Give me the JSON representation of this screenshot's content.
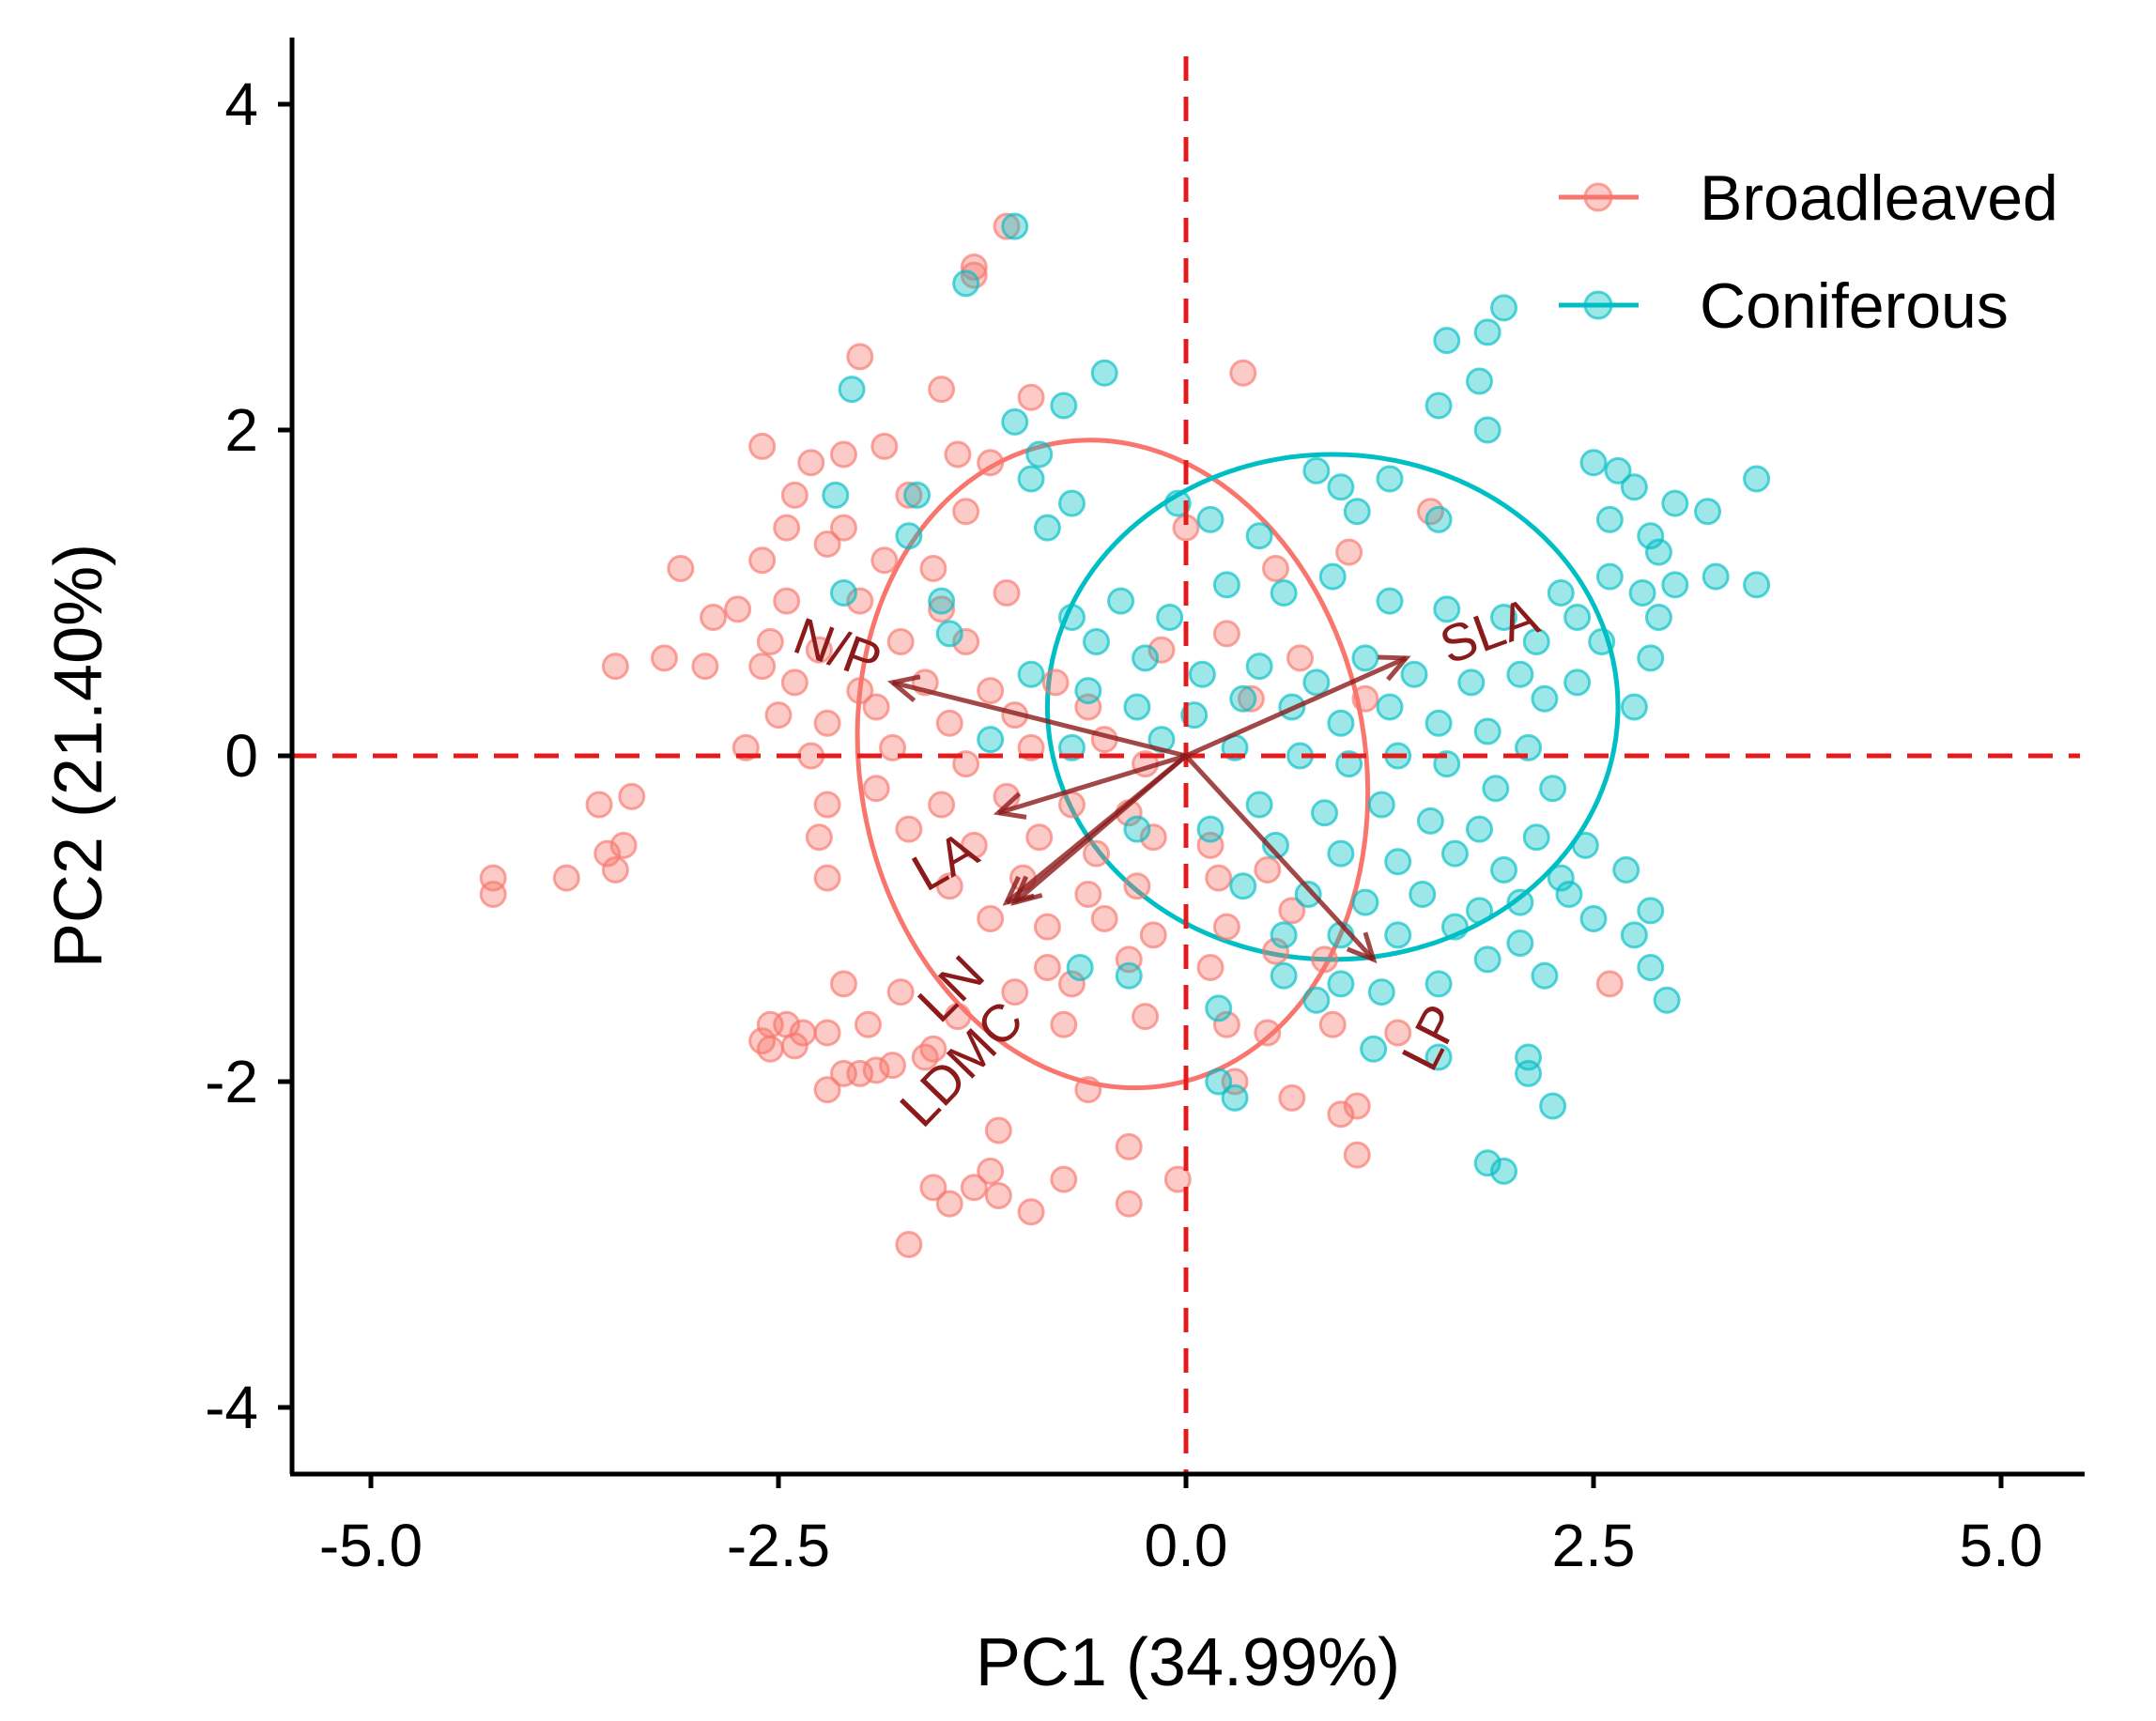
{
  "chart_data": {
    "type": "scatter",
    "title": "",
    "xlabel": "PC1 (34.99%)",
    "ylabel": "PC2 (21.40%)",
    "xlim": [
      -5.5,
      5.5
    ],
    "ylim": [
      -4.4,
      4.4
    ],
    "xticks": [
      -5.0,
      -2.5,
      0.0,
      2.5,
      5.0
    ],
    "xtick_labels": [
      "-5.0",
      "-2.5",
      "0.0",
      "2.5",
      "5.0"
    ],
    "yticks": [
      -4,
      -2,
      0,
      2,
      4
    ],
    "ytick_labels": [
      "-4",
      "-2",
      "0",
      "2",
      "4"
    ],
    "grid": false,
    "legend_position": "top-right",
    "reference_lines": {
      "x": 0,
      "y": 0,
      "color": "#e41a1c",
      "style": "dashed"
    },
    "series": [
      {
        "name": "Broadleaved",
        "color": "#F8766D",
        "ellipse": {
          "cx": -0.45,
          "cy": -0.05,
          "rx": 1.55,
          "ry": 2.0,
          "angle_deg": -10
        },
        "points": [
          [
            -1.3,
            3.0
          ],
          [
            -1.3,
            2.95
          ],
          [
            -1.1,
            3.25
          ],
          [
            -2.0,
            2.45
          ],
          [
            -1.5,
            2.25
          ],
          [
            -0.95,
            2.2
          ],
          [
            -2.6,
            1.9
          ],
          [
            -2.3,
            1.8
          ],
          [
            -2.1,
            1.85
          ],
          [
            -1.85,
            1.9
          ],
          [
            -1.4,
            1.85
          ],
          [
            -1.2,
            1.8
          ],
          [
            -2.4,
            1.6
          ],
          [
            -1.7,
            1.6
          ],
          [
            -2.45,
            1.4
          ],
          [
            -2.1,
            1.4
          ],
          [
            -1.35,
            1.5
          ],
          [
            -2.6,
            1.2
          ],
          [
            -2.2,
            1.3
          ],
          [
            -1.85,
            1.2
          ],
          [
            -1.55,
            1.15
          ],
          [
            -3.1,
            1.15
          ],
          [
            -2.75,
            0.9
          ],
          [
            -2.45,
            0.95
          ],
          [
            -2.0,
            0.95
          ],
          [
            -1.5,
            0.9
          ],
          [
            -1.1,
            1.0
          ],
          [
            -2.9,
            0.85
          ],
          [
            -2.55,
            0.7
          ],
          [
            -2.25,
            0.65
          ],
          [
            -1.75,
            0.7
          ],
          [
            -1.35,
            0.7
          ],
          [
            -3.2,
            0.6
          ],
          [
            -2.95,
            0.55
          ],
          [
            -2.6,
            0.55
          ],
          [
            -3.5,
            0.55
          ],
          [
            -2.4,
            0.45
          ],
          [
            -2.0,
            0.4
          ],
          [
            -1.6,
            0.45
          ],
          [
            -1.2,
            0.4
          ],
          [
            -0.8,
            0.45
          ],
          [
            -2.5,
            0.25
          ],
          [
            -2.2,
            0.2
          ],
          [
            -1.9,
            0.3
          ],
          [
            -1.45,
            0.2
          ],
          [
            -1.05,
            0.25
          ],
          [
            -0.6,
            0.3
          ],
          [
            -2.7,
            0.05
          ],
          [
            -2.3,
            0.0
          ],
          [
            -1.8,
            0.05
          ],
          [
            -1.35,
            -0.05
          ],
          [
            -0.95,
            0.05
          ],
          [
            -0.5,
            0.1
          ],
          [
            -0.25,
            -0.05
          ],
          [
            -3.6,
            -0.3
          ],
          [
            -3.4,
            -0.25
          ],
          [
            -2.2,
            -0.3
          ],
          [
            -1.9,
            -0.2
          ],
          [
            -1.5,
            -0.3
          ],
          [
            -1.1,
            -0.25
          ],
          [
            -0.7,
            -0.3
          ],
          [
            -0.35,
            -0.35
          ],
          [
            -3.55,
            -0.6
          ],
          [
            -3.45,
            -0.55
          ],
          [
            -3.8,
            -0.75
          ],
          [
            -3.5,
            -0.7
          ],
          [
            -4.25,
            -0.75
          ],
          [
            -4.25,
            -0.85
          ],
          [
            -2.25,
            -0.5
          ],
          [
            -1.7,
            -0.45
          ],
          [
            -1.3,
            -0.55
          ],
          [
            -0.9,
            -0.5
          ],
          [
            -0.55,
            -0.6
          ],
          [
            -0.2,
            -0.5
          ],
          [
            0.15,
            -0.55
          ],
          [
            -2.2,
            -0.75
          ],
          [
            -1.45,
            -0.8
          ],
          [
            -1.0,
            -0.75
          ],
          [
            -0.6,
            -0.85
          ],
          [
            -0.3,
            -0.8
          ],
          [
            0.2,
            -0.75
          ],
          [
            0.5,
            -0.7
          ],
          [
            -1.2,
            -1.0
          ],
          [
            -0.85,
            -1.05
          ],
          [
            -0.5,
            -1.0
          ],
          [
            -0.2,
            -1.1
          ],
          [
            0.25,
            -1.05
          ],
          [
            0.65,
            -0.95
          ],
          [
            -0.85,
            -1.3
          ],
          [
            -0.35,
            -1.25
          ],
          [
            0.15,
            -1.3
          ],
          [
            0.55,
            -1.2
          ],
          [
            0.85,
            -1.25
          ],
          [
            -2.1,
            -1.4
          ],
          [
            -1.75,
            -1.45
          ],
          [
            -1.05,
            -1.45
          ],
          [
            -0.7,
            -1.4
          ],
          [
            -2.55,
            -1.65
          ],
          [
            -2.45,
            -1.65
          ],
          [
            -2.35,
            -1.7
          ],
          [
            -2.2,
            -1.7
          ],
          [
            -1.95,
            -1.65
          ],
          [
            -1.4,
            -1.6
          ],
          [
            -0.75,
            -1.65
          ],
          [
            -0.25,
            -1.6
          ],
          [
            0.25,
            -1.65
          ],
          [
            0.5,
            -1.7
          ],
          [
            0.9,
            -1.65
          ],
          [
            1.3,
            -1.7
          ],
          [
            -2.6,
            -1.75
          ],
          [
            -2.55,
            -1.8
          ],
          [
            -2.4,
            -1.78
          ],
          [
            -2.1,
            -1.95
          ],
          [
            -2.0,
            -1.95
          ],
          [
            -1.9,
            -1.93
          ],
          [
            -1.8,
            -1.9
          ],
          [
            -1.6,
            -1.85
          ],
          [
            -1.55,
            -1.8
          ],
          [
            -2.2,
            -2.05
          ],
          [
            -0.6,
            -2.05
          ],
          [
            0.3,
            -2.0
          ],
          [
            0.65,
            -2.1
          ],
          [
            0.95,
            -2.2
          ],
          [
            1.05,
            -2.15
          ],
          [
            -1.15,
            -2.3
          ],
          [
            -0.35,
            -2.4
          ],
          [
            1.05,
            -2.45
          ],
          [
            -1.2,
            -2.55
          ],
          [
            -0.75,
            -2.6
          ],
          [
            -0.05,
            -2.6
          ],
          [
            -1.55,
            -2.65
          ],
          [
            -1.3,
            -2.65
          ],
          [
            -1.15,
            -2.7
          ],
          [
            -0.35,
            -2.75
          ],
          [
            -1.45,
            -2.75
          ],
          [
            -0.95,
            -2.8
          ],
          [
            -1.7,
            -3.0
          ],
          [
            2.6,
            -1.4
          ],
          [
            0.35,
            2.35
          ],
          [
            0.0,
            1.4
          ],
          [
            0.55,
            1.15
          ],
          [
            1.0,
            1.25
          ],
          [
            1.5,
            1.5
          ],
          [
            0.25,
            0.75
          ],
          [
            0.7,
            0.6
          ],
          [
            1.1,
            0.35
          ],
          [
            -0.15,
            0.65
          ],
          [
            0.4,
            0.35
          ]
        ]
      },
      {
        "name": "Coniferous",
        "color": "#00BFC4",
        "ellipse": {
          "cx": 0.9,
          "cy": 0.3,
          "rx": 1.75,
          "ry": 1.55,
          "angle_deg": 0
        },
        "points": [
          [
            -1.05,
            3.25
          ],
          [
            -1.35,
            2.9
          ],
          [
            -2.05,
            2.25
          ],
          [
            -1.05,
            2.05
          ],
          [
            -0.5,
            2.35
          ],
          [
            -0.75,
            2.15
          ],
          [
            -0.9,
            1.85
          ],
          [
            -1.65,
            1.6
          ],
          [
            -2.15,
            1.6
          ],
          [
            -0.95,
            1.7
          ],
          [
            -0.7,
            1.55
          ],
          [
            -0.05,
            1.55
          ],
          [
            -1.7,
            1.35
          ],
          [
            -0.85,
            1.4
          ],
          [
            0.15,
            1.45
          ],
          [
            0.45,
            1.35
          ],
          [
            1.05,
            1.5
          ],
          [
            1.25,
            1.7
          ],
          [
            1.55,
            1.45
          ],
          [
            1.6,
            2.55
          ],
          [
            1.85,
            2.6
          ],
          [
            1.95,
            2.75
          ],
          [
            1.8,
            2.3
          ],
          [
            1.55,
            2.15
          ],
          [
            1.85,
            2.0
          ],
          [
            0.8,
            1.75
          ],
          [
            0.95,
            1.65
          ],
          [
            2.5,
            1.8
          ],
          [
            2.65,
            1.75
          ],
          [
            2.75,
            1.65
          ],
          [
            3.0,
            1.55
          ],
          [
            3.2,
            1.5
          ],
          [
            3.5,
            1.7
          ],
          [
            2.6,
            1.45
          ],
          [
            2.85,
            1.35
          ],
          [
            2.9,
            1.25
          ],
          [
            2.6,
            1.1
          ],
          [
            2.8,
            1.0
          ],
          [
            3.0,
            1.05
          ],
          [
            3.25,
            1.1
          ],
          [
            3.5,
            1.05
          ],
          [
            2.3,
            1.0
          ],
          [
            2.4,
            0.85
          ],
          [
            2.9,
            0.85
          ],
          [
            2.55,
            0.7
          ],
          [
            2.85,
            0.6
          ],
          [
            2.4,
            0.45
          ],
          [
            2.75,
            0.3
          ],
          [
            2.2,
            0.35
          ],
          [
            -2.1,
            1.0
          ],
          [
            -1.5,
            0.95
          ],
          [
            -1.45,
            0.75
          ],
          [
            -0.7,
            0.85
          ],
          [
            -0.4,
            0.95
          ],
          [
            -0.1,
            0.85
          ],
          [
            0.25,
            1.05
          ],
          [
            0.6,
            1.0
          ],
          [
            0.9,
            1.1
          ],
          [
            1.25,
            0.95
          ],
          [
            1.6,
            0.9
          ],
          [
            1.95,
            0.85
          ],
          [
            2.15,
            0.7
          ],
          [
            -0.55,
            0.7
          ],
          [
            -0.25,
            0.6
          ],
          [
            0.1,
            0.5
          ],
          [
            0.45,
            0.55
          ],
          [
            0.8,
            0.45
          ],
          [
            1.1,
            0.6
          ],
          [
            1.4,
            0.5
          ],
          [
            1.75,
            0.45
          ],
          [
            2.05,
            0.5
          ],
          [
            -0.95,
            0.5
          ],
          [
            -0.6,
            0.4
          ],
          [
            -0.3,
            0.3
          ],
          [
            0.05,
            0.25
          ],
          [
            0.35,
            0.35
          ],
          [
            0.65,
            0.3
          ],
          [
            0.95,
            0.2
          ],
          [
            1.25,
            0.3
          ],
          [
            1.55,
            0.2
          ],
          [
            1.85,
            0.15
          ],
          [
            2.1,
            0.05
          ],
          [
            -1.2,
            0.1
          ],
          [
            -0.7,
            0.05
          ],
          [
            -0.15,
            0.1
          ],
          [
            0.3,
            0.05
          ],
          [
            0.7,
            0.0
          ],
          [
            1.0,
            -0.05
          ],
          [
            1.3,
            0.0
          ],
          [
            1.6,
            -0.05
          ],
          [
            1.9,
            -0.2
          ],
          [
            2.25,
            -0.2
          ],
          [
            0.45,
            -0.3
          ],
          [
            0.85,
            -0.35
          ],
          [
            1.2,
            -0.3
          ],
          [
            1.5,
            -0.4
          ],
          [
            1.8,
            -0.45
          ],
          [
            2.15,
            -0.5
          ],
          [
            2.45,
            -0.55
          ],
          [
            -0.3,
            -0.45
          ],
          [
            0.15,
            -0.45
          ],
          [
            0.55,
            -0.55
          ],
          [
            0.95,
            -0.6
          ],
          [
            1.3,
            -0.65
          ],
          [
            1.65,
            -0.6
          ],
          [
            1.95,
            -0.7
          ],
          [
            2.3,
            -0.75
          ],
          [
            2.7,
            -0.7
          ],
          [
            0.35,
            -0.8
          ],
          [
            0.75,
            -0.85
          ],
          [
            1.1,
            -0.9
          ],
          [
            1.45,
            -0.85
          ],
          [
            1.8,
            -0.95
          ],
          [
            2.05,
            -0.9
          ],
          [
            2.35,
            -0.85
          ],
          [
            2.85,
            -0.95
          ],
          [
            0.6,
            -1.1
          ],
          [
            0.95,
            -1.1
          ],
          [
            1.3,
            -1.1
          ],
          [
            1.65,
            -1.05
          ],
          [
            2.05,
            -1.15
          ],
          [
            2.5,
            -1.0
          ],
          [
            2.75,
            -1.1
          ],
          [
            -0.35,
            -1.35
          ],
          [
            0.6,
            -1.35
          ],
          [
            0.95,
            -1.4
          ],
          [
            1.2,
            -1.45
          ],
          [
            1.55,
            -1.4
          ],
          [
            1.85,
            -1.25
          ],
          [
            2.2,
            -1.35
          ],
          [
            2.85,
            -1.3
          ],
          [
            2.95,
            -1.5
          ],
          [
            -0.65,
            -1.3
          ],
          [
            0.2,
            -1.55
          ],
          [
            0.8,
            -1.5
          ],
          [
            1.15,
            -1.8
          ],
          [
            1.55,
            -1.85
          ],
          [
            2.1,
            -1.85
          ],
          [
            2.1,
            -1.95
          ],
          [
            2.25,
            -2.15
          ],
          [
            0.2,
            -2.0
          ],
          [
            0.3,
            -2.1
          ],
          [
            1.85,
            -2.5
          ],
          [
            1.95,
            -2.55
          ]
        ]
      }
    ],
    "loadings": [
      {
        "name": "N/P",
        "x": -1.8,
        "y": 0.45
      },
      {
        "name": "SLA",
        "x": 1.35,
        "y": 0.6
      },
      {
        "name": "LA",
        "x": -1.15,
        "y": -0.35
      },
      {
        "name": "LN",
        "x": -1.05,
        "y": -0.9
      },
      {
        "name": "LDMC",
        "x": -1.1,
        "y": -0.9
      },
      {
        "name": "LP",
        "x": 1.15,
        "y": -1.25
      }
    ],
    "loading_color": "#8B1A1A"
  }
}
